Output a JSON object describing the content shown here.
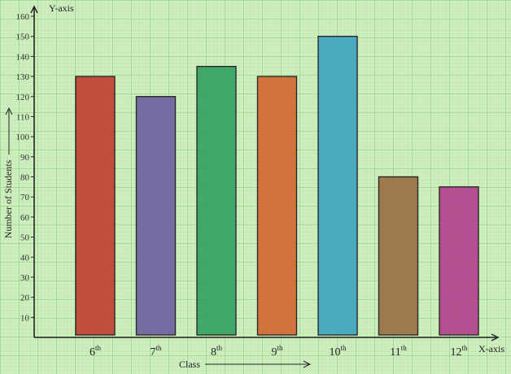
{
  "chart_data": {
    "type": "bar",
    "categories": [
      {
        "num": "6",
        "suffix": "th"
      },
      {
        "num": "7",
        "suffix": "th"
      },
      {
        "num": "8",
        "suffix": "th"
      },
      {
        "num": "9",
        "suffix": "th"
      },
      {
        "num": "10",
        "suffix": "th"
      },
      {
        "num": "11",
        "suffix": "th"
      },
      {
        "num": "12",
        "suffix": "th"
      }
    ],
    "values": [
      130,
      120,
      135,
      130,
      150,
      80,
      75
    ],
    "colors": [
      "#c0392b",
      "#6a5a9e",
      "#2e9e5b",
      "#d4622a",
      "#3aa0c0",
      "#9a6a3f",
      "#b03a8a"
    ],
    "xlabel": "Class",
    "ylabel": "Number of Students",
    "y_axis_name": "Y-axis",
    "x_axis_name": "X-axis",
    "ylim": [
      0,
      160
    ],
    "yticks": [
      10,
      20,
      30,
      40,
      50,
      60,
      70,
      80,
      90,
      100,
      110,
      120,
      130,
      140,
      150,
      160
    ],
    "grid": true,
    "background_color": "#cfeec0"
  }
}
